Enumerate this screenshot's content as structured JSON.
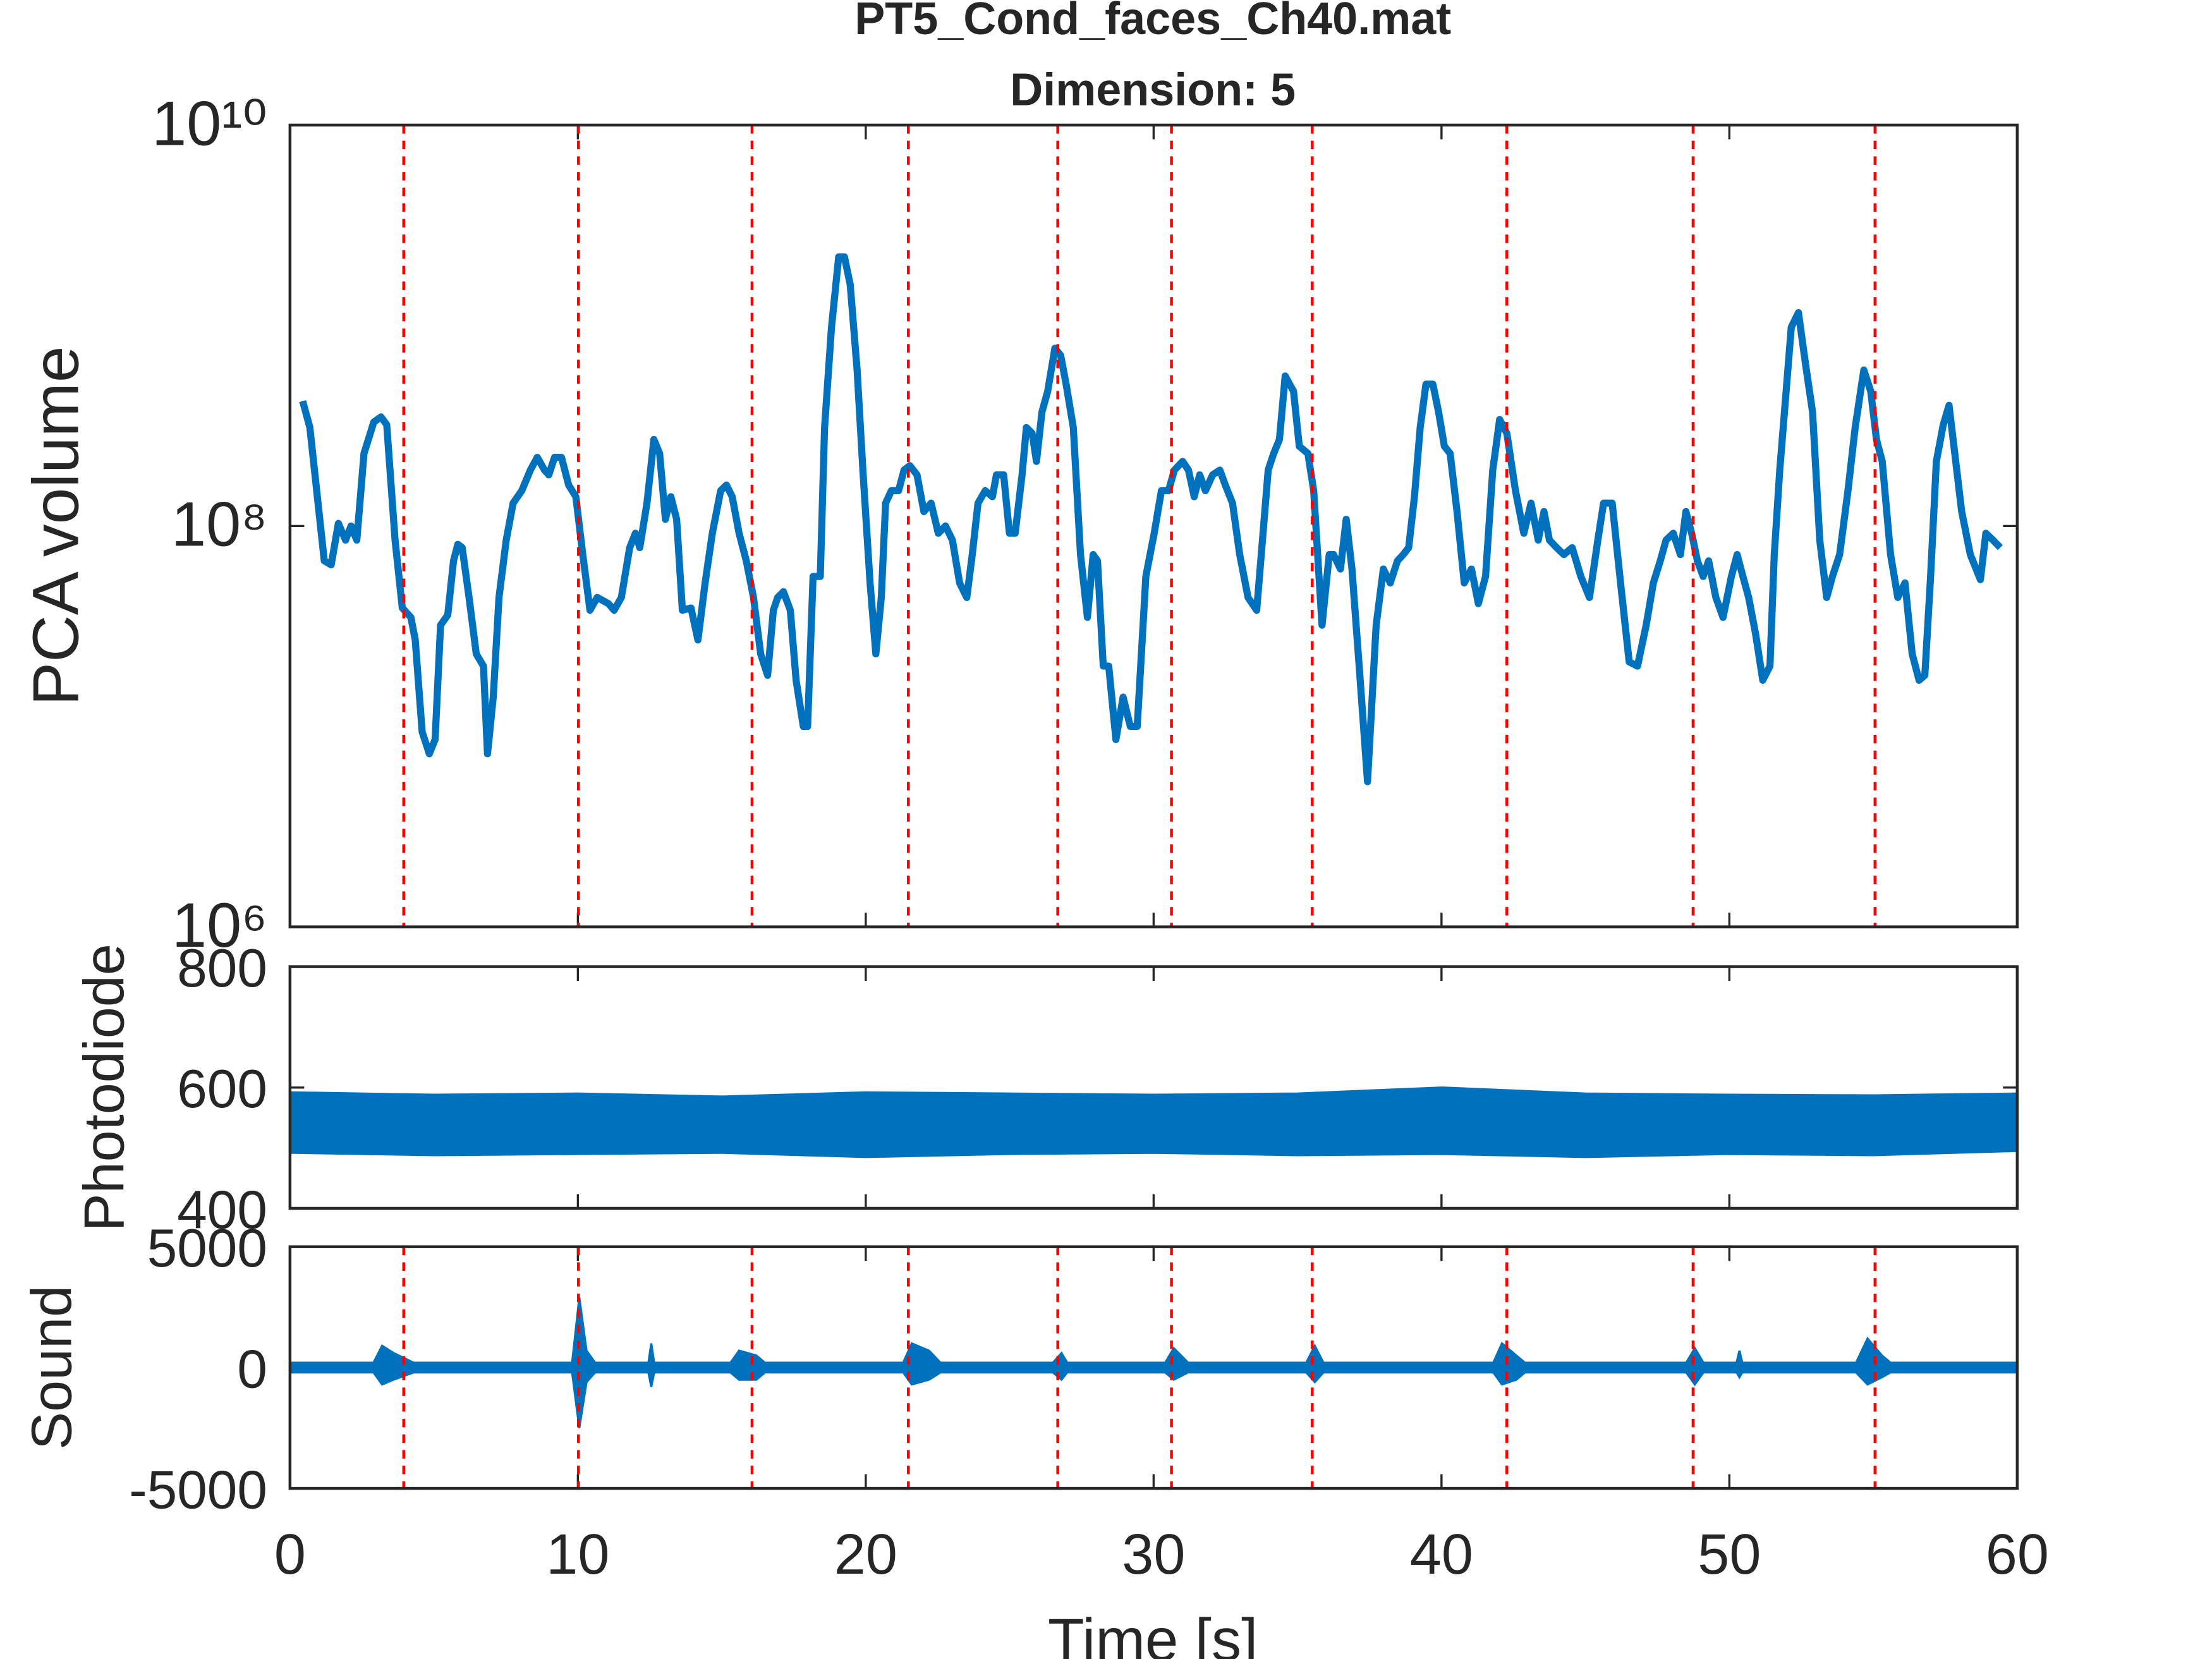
{
  "chart_data": [
    {
      "type": "line",
      "title": "PT5_Cond_faces_Ch40.mat",
      "subtitle": "Dimension: 5",
      "ylabel": "PCA volume",
      "yscale": "log",
      "color": "#0072BD",
      "event_color": "#ff0000",
      "xlim": [
        0,
        60
      ],
      "ylim": [
        1000000,
        10000000000
      ],
      "yticks": [
        {
          "value": 1000000,
          "label": "10⁶"
        },
        {
          "value": 100000000,
          "label": "10⁸"
        },
        {
          "value": 10000000000,
          "label": "10¹⁰"
        }
      ],
      "events": [
        3.95,
        10.02,
        16.05,
        21.48,
        26.67,
        30.62,
        35.51,
        42.27,
        48.74,
        55.06
      ],
      "x": [
        0.44,
        0.69,
        1.19,
        1.43,
        1.68,
        1.93,
        2.12,
        2.32,
        2.57,
        2.91,
        3.16,
        3.36,
        3.65,
        3.9,
        4.2,
        4.35,
        4.59,
        4.84,
        5.04,
        5.23,
        5.48,
        5.68,
        5.83,
        5.98,
        6.22,
        6.47,
        6.72,
        6.86,
        7.06,
        7.26,
        7.51,
        7.75,
        8.05,
        8.35,
        8.59,
        8.84,
        8.99,
        9.19,
        9.43,
        9.68,
        9.93,
        10.17,
        10.42,
        10.67,
        11.06,
        11.26,
        11.51,
        11.8,
        12.0,
        12.15,
        12.4,
        12.64,
        12.84,
        13.04,
        13.23,
        13.43,
        13.63,
        13.93,
        14.17,
        14.42,
        14.67,
        14.96,
        15.16,
        15.36,
        15.6,
        15.85,
        16.1,
        16.35,
        16.59,
        16.79,
        16.94,
        17.14,
        17.38,
        17.58,
        17.83,
        17.98,
        18.17,
        18.42,
        18.57,
        18.81,
        19.06,
        19.26,
        19.46,
        19.7,
        19.9,
        20.15,
        20.35,
        20.54,
        20.69,
        20.89,
        21.14,
        21.33,
        21.53,
        21.78,
        22.02,
        22.27,
        22.52,
        22.77,
        23.01,
        23.26,
        23.51,
        23.7,
        23.9,
        24.15,
        24.4,
        24.54,
        24.79,
        24.99,
        25.19,
        25.43,
        25.58,
        25.78,
        25.93,
        26.12,
        26.32,
        26.57,
        26.77,
        26.96,
        27.21,
        27.46,
        27.7,
        27.9,
        28.05,
        28.25,
        28.44,
        28.69,
        28.94,
        29.19,
        29.43,
        29.73,
        30.02,
        30.27,
        30.52,
        30.72,
        31.01,
        31.21,
        31.41,
        31.6,
        31.8,
        32.05,
        32.3,
        32.49,
        32.74,
        32.99,
        33.28,
        33.58,
        33.78,
        33.98,
        34.17,
        34.37,
        34.57,
        34.86,
        35.06,
        35.36,
        35.56,
        35.85,
        36.1,
        36.25,
        36.49,
        36.69,
        36.89,
        37.14,
        37.43,
        37.73,
        37.98,
        38.22,
        38.47,
        38.67,
        38.86,
        39.06,
        39.26,
        39.46,
        39.7,
        39.9,
        40.1,
        40.3,
        40.54,
        40.79,
        41.04,
        41.28,
        41.53,
        41.78,
        42.02,
        42.27,
        42.57,
        42.86,
        43.11,
        43.36,
        43.56,
        43.75,
        44.0,
        44.25,
        44.54,
        44.84,
        45.14,
        45.43,
        45.63,
        45.93,
        46.22,
        46.52,
        46.81,
        47.11,
        47.36,
        47.6,
        47.8,
        48.05,
        48.3,
        48.49,
        48.69,
        48.89,
        49.09,
        49.28,
        49.53,
        49.78,
        50.07,
        50.27,
        50.47,
        50.67,
        50.91,
        51.16,
        51.41,
        51.56,
        51.75,
        51.95,
        52.15,
        52.4,
        52.64,
        52.89,
        53.14,
        53.38,
        53.58,
        53.83,
        54.12,
        54.37,
        54.67,
        54.91,
        55.11,
        55.31,
        55.6,
        55.85,
        56.1,
        56.35,
        56.59,
        56.79,
        56.99,
        57.19,
        57.43,
        57.63,
        57.83,
        58.07,
        58.37,
        58.72,
        58.91,
        59.16,
        59.41
      ],
      "values": [
        420000000.0,
        310000000.0,
        67000000.0,
        64000000.0,
        103000000.0,
        85000000.0,
        100000000.0,
        85000000.0,
        230000000.0,
        330000000.0,
        350000000.0,
        320000000.0,
        85000000.0,
        39000000.0,
        35000000.0,
        27000000.0,
        9400000.0,
        7300000.0,
        8600000.0,
        32000000.0,
        36000000.0,
        67000000.0,
        81000000.0,
        78000000.0,
        44000000.0,
        23000000.0,
        20000000.0,
        7300000.0,
        14000000.0,
        44000000.0,
        85000000.0,
        130000000.0,
        150000000.0,
        190000000.0,
        220000000.0,
        190000000.0,
        180000000.0,
        220000000.0,
        220000000.0,
        160000000.0,
        140000000.0,
        72000000.0,
        38000000.0,
        44000000.0,
        41000000.0,
        38000000.0,
        44000000.0,
        78000000.0,
        92000000.0,
        78000000.0,
        130000000.0,
        270000000.0,
        230000000.0,
        108000000.0,
        140000000.0,
        108000000.0,
        38000000.0,
        39000000.0,
        27000000.0,
        52000000.0,
        92000000.0,
        150000000.0,
        160000000.0,
        140000000.0,
        92000000.0,
        67000000.0,
        44000000.0,
        23000000.0,
        18000000.0,
        38000000.0,
        44000000.0,
        47000000.0,
        38000000.0,
        17000000.0,
        10000000.0,
        10000000.0,
        56000000.0,
        56000000.0,
        310000000.0,
        980000000.0,
        2200000000.0,
        2200000000.0,
        1600000000.0,
        600000000.0,
        190000000.0,
        52000000.0,
        23000000.0,
        44000000.0,
        130000000.0,
        150000000.0,
        150000000.0,
        190000000.0,
        200000000.0,
        180000000.0,
        118000000.0,
        130000000.0,
        92000000.0,
        100000000.0,
        85000000.0,
        52000000.0,
        44000000.0,
        72000000.0,
        130000000.0,
        150000000.0,
        140000000.0,
        180000000.0,
        180000000.0,
        92000000.0,
        92000000.0,
        180000000.0,
        310000000.0,
        290000000.0,
        210000000.0,
        370000000.0,
        470000000.0,
        770000000.0,
        710000000.0,
        510000000.0,
        310000000.0,
        72000000.0,
        35000000.0,
        72000000.0,
        67000000.0,
        20000000.0,
        20000000.0,
        8600000.0,
        14000000.0,
        10000000.0,
        10000000.0,
        56000000.0,
        92000000.0,
        150000000.0,
        150000000.0,
        190000000.0,
        210000000.0,
        190000000.0,
        140000000.0,
        180000000.0,
        150000000.0,
        180000000.0,
        190000000.0,
        160000000.0,
        130000000.0,
        72000000.0,
        44000000.0,
        38000000.0,
        85000000.0,
        190000000.0,
        230000000.0,
        270000000.0,
        560000000.0,
        470000000.0,
        250000000.0,
        230000000.0,
        150000000.0,
        32000000.0,
        72000000.0,
        72000000.0,
        61000000.0,
        108000000.0,
        61000000.0,
        20000000.0,
        5300000.0,
        32000000.0,
        61000000.0,
        52000000.0,
        67000000.0,
        72000000.0,
        78000000.0,
        140000000.0,
        310000000.0,
        510000000.0,
        510000000.0,
        370000000.0,
        250000000.0,
        230000000.0,
        118000000.0,
        52000000.0,
        61000000.0,
        41000000.0,
        56000000.0,
        190000000.0,
        340000000.0,
        290000000.0,
        150000000.0,
        92000000.0,
        130000000.0,
        85000000.0,
        118000000.0,
        85000000.0,
        78000000.0,
        72000000.0,
        78000000.0,
        56000000.0,
        44000000.0,
        85000000.0,
        130000000.0,
        130000000.0,
        52000000.0,
        21000000.0,
        20000000.0,
        32000000.0,
        52000000.0,
        67000000.0,
        85000000.0,
        92000000.0,
        72000000.0,
        118000000.0,
        92000000.0,
        67000000.0,
        56000000.0,
        67000000.0,
        44000000.0,
        35000000.0,
        56000000.0,
        72000000.0,
        56000000.0,
        44000000.0,
        29000000.0,
        17000000.0,
        20000000.0,
        72000000.0,
        190000000.0,
        430000000.0,
        980000000.0,
        1160000000.0,
        650000000.0,
        370000000.0,
        85000000.0,
        44000000.0,
        56000000.0,
        72000000.0,
        150000000.0,
        310000000.0,
        600000000.0,
        470000000.0,
        270000000.0,
        210000000.0,
        72000000.0,
        44000000.0,
        52000000.0,
        23000000.0,
        17000000.0,
        18000000.0,
        56000000.0,
        210000000.0,
        320000000.0,
        400000000.0,
        230000000.0,
        118000000.0,
        72000000.0,
        54000000.0,
        92000000.0,
        85000000.0,
        78000000.0
      ]
    },
    {
      "type": "band",
      "ylabel": "Photodiode",
      "color": "#0072BD",
      "xlim": [
        0,
        60
      ],
      "ylim": [
        400,
        800
      ],
      "yticks": [
        400,
        600,
        800
      ],
      "x": [
        0,
        5,
        10,
        15,
        20,
        25,
        30,
        35,
        40,
        45,
        50,
        55,
        60
      ],
      "upper": [
        592,
        588,
        590,
        585,
        592,
        590,
        588,
        590,
        600,
        590,
        588,
        587,
        590
      ],
      "lower": [
        492,
        488,
        490,
        492,
        485,
        490,
        492,
        488,
        490,
        485,
        490,
        488,
        495
      ]
    },
    {
      "type": "band",
      "ylabel": "Sound",
      "xlabel": "Time [s]",
      "color": "#0072BD",
      "event_color": "#ff0000",
      "xlim": [
        0,
        60
      ],
      "ylim": [
        -5000,
        5000
      ],
      "yticks": [
        -5000,
        0,
        5000
      ],
      "xticks": [
        0,
        10,
        20,
        30,
        40,
        50,
        60
      ],
      "events": [
        3.95,
        10.02,
        16.05,
        21.48,
        26.67,
        30.62,
        35.51,
        42.27,
        48.74,
        55.06
      ],
      "x": [
        0,
        2.9,
        3.2,
        3.6,
        4.3,
        9.8,
        10.05,
        10.3,
        10.6,
        12.45,
        12.55,
        12.65,
        15.3,
        15.6,
        16.2,
        16.5,
        21.3,
        21.6,
        22.2,
        22.6,
        26.5,
        26.8,
        27.0,
        30.4,
        30.7,
        31.2,
        35.3,
        35.6,
        35.9,
        41.8,
        42.1,
        42.6,
        42.9,
        48.5,
        48.8,
        49.1,
        50.25,
        50.35,
        50.45,
        54.4,
        54.8,
        55.3,
        55.6,
        60
      ],
      "upper": [
        200,
        200,
        900,
        600,
        200,
        200,
        2900,
        700,
        200,
        200,
        1000,
        200,
        200,
        700,
        500,
        200,
        200,
        1000,
        700,
        200,
        200,
        600,
        200,
        200,
        800,
        200,
        200,
        900,
        200,
        200,
        1000,
        500,
        200,
        200,
        800,
        200,
        200,
        700,
        200,
        200,
        1200,
        500,
        200,
        200
      ],
      "lower": [
        -200,
        -200,
        -700,
        -500,
        -200,
        -200,
        -2500,
        -600,
        -200,
        -200,
        -800,
        -200,
        -200,
        -500,
        -500,
        -200,
        -200,
        -700,
        -500,
        -200,
        -200,
        -500,
        -200,
        -200,
        -500,
        -200,
        -200,
        -600,
        -200,
        -200,
        -700,
        -500,
        -200,
        -200,
        -700,
        -200,
        -200,
        -400,
        -200,
        -200,
        -700,
        -400,
        -200,
        -200
      ]
    }
  ]
}
